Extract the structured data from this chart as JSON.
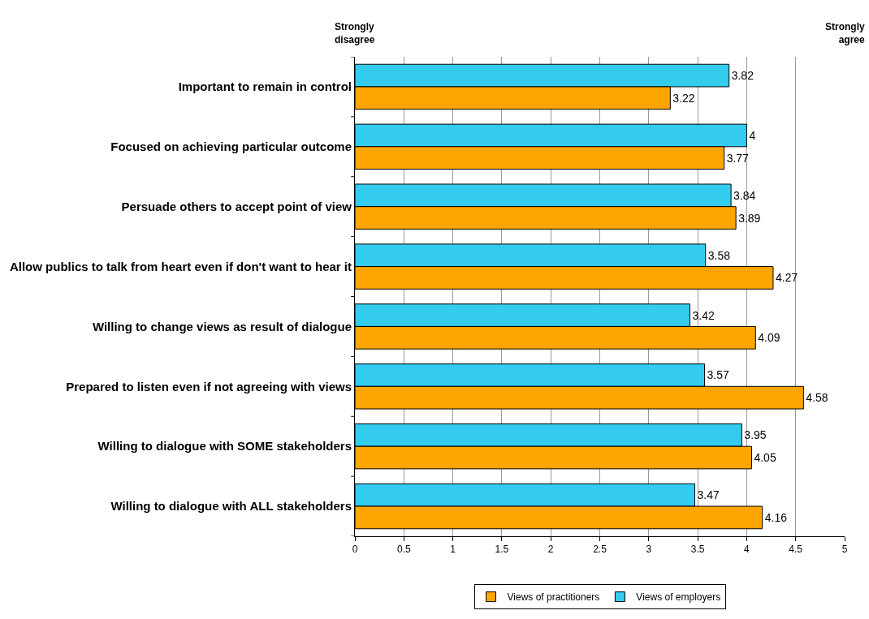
{
  "chart_data": {
    "type": "bar",
    "orientation": "horizontal",
    "categories": [
      "Important to remain in control",
      "Focused on achieving particular outcome",
      "Persuade others to accept point of view",
      "Allow publics to talk from heart even if don't want to hear it",
      "Willing to change views as result of dialogue",
      "Prepared to listen even if not agreeing with views",
      "Willing to dialogue with SOME stakeholders",
      "Willing to dialogue with ALL stakeholders"
    ],
    "series": [
      {
        "name": "Views of practitioners",
        "color": "#ffa500",
        "values": [
          3.22,
          3.77,
          3.89,
          4.27,
          4.09,
          4.58,
          4.05,
          4.16
        ]
      },
      {
        "name": "Views of employers",
        "color": "#33ccee",
        "values": [
          3.82,
          4,
          3.84,
          3.58,
          3.42,
          3.57,
          3.95,
          3.47
        ]
      }
    ],
    "xlim": [
      0,
      5
    ],
    "xticks": [
      0,
      0.5,
      1,
      1.5,
      2,
      2.5,
      3,
      3.5,
      4,
      4.5,
      5
    ],
    "grid": "x",
    "legend": "bottom",
    "data_labels": true,
    "annotations": [
      "Strongly disagree",
      "Strongly agree"
    ]
  }
}
